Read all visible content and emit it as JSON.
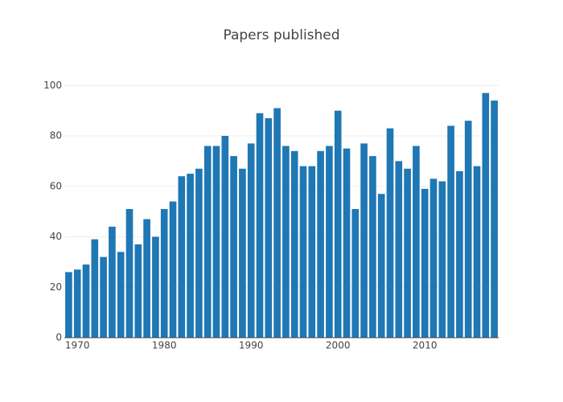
{
  "chart_data": {
    "type": "bar",
    "title": "Papers published",
    "x": [
      1969,
      1970,
      1971,
      1972,
      1973,
      1974,
      1975,
      1976,
      1977,
      1978,
      1979,
      1980,
      1981,
      1982,
      1983,
      1984,
      1985,
      1986,
      1987,
      1988,
      1989,
      1990,
      1991,
      1992,
      1993,
      1994,
      1995,
      1996,
      1997,
      1998,
      1999,
      2000,
      2001,
      2002,
      2003,
      2004,
      2005,
      2006,
      2007,
      2008,
      2009,
      2010,
      2011,
      2012,
      2013,
      2014,
      2015,
      2016,
      2017,
      2018
    ],
    "values": [
      26,
      27,
      29,
      39,
      32,
      44,
      34,
      51,
      37,
      47,
      40,
      51,
      54,
      64,
      65,
      67,
      76,
      76,
      80,
      72,
      67,
      77,
      89,
      87,
      91,
      76,
      74,
      68,
      68,
      74,
      76,
      90,
      75,
      51,
      77,
      72,
      57,
      83,
      70,
      67,
      76,
      59,
      63,
      62,
      84,
      66,
      86,
      68,
      97,
      94
    ],
    "color": "#1f77b4",
    "xlim": [
      1968.5,
      2018.5
    ],
    "xticks": [
      1970,
      1980,
      1990,
      2000,
      2010
    ],
    "ylim": [
      0,
      102
    ],
    "yticks": [
      0,
      20,
      40,
      60,
      80,
      100
    ],
    "grid": true
  }
}
